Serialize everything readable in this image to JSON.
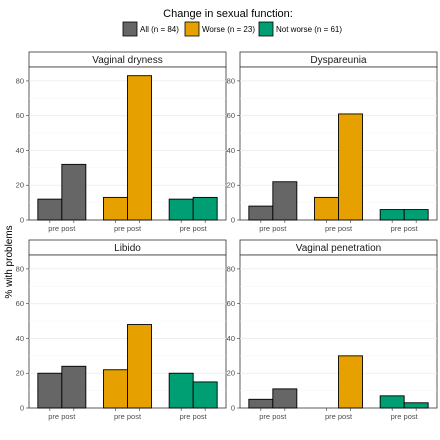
{
  "chart_data": {
    "type": "bar",
    "title": "",
    "ylabel": "% with problems",
    "xlabel": "",
    "ylim": [
      0,
      88
    ],
    "y_ticks": [
      0,
      20,
      40,
      60,
      80
    ],
    "legend": {
      "title": "Change in sexual function:",
      "position": "top",
      "items": [
        {
          "label": "All (n = 84)",
          "color": "#666666"
        },
        {
          "label": "Worse (n = 23)",
          "color": "#E6A000"
        },
        {
          "label": "Not worse (n = 61)",
          "color": "#009E73"
        }
      ]
    },
    "groups": [
      "All (n = 84)",
      "Worse (n = 23)",
      "Not worse (n = 61)"
    ],
    "group_colors": [
      "#666666",
      "#E6A000",
      "#009E73"
    ],
    "x_tick_label": "pre post",
    "grid": true,
    "panels": [
      {
        "title": "Vaginal dryness",
        "values": [
          [
            12,
            32
          ],
          [
            13,
            83
          ],
          [
            12,
            13
          ]
        ]
      },
      {
        "title": "Dyspareunia",
        "values": [
          [
            8,
            22
          ],
          [
            13,
            61
          ],
          [
            6,
            6
          ]
        ]
      },
      {
        "title": "Libido",
        "values": [
          [
            20,
            24
          ],
          [
            22,
            48
          ],
          [
            20,
            15
          ]
        ]
      },
      {
        "title": "Vaginal penetration",
        "values": [
          [
            5,
            11
          ],
          [
            0,
            30
          ],
          [
            7,
            3
          ]
        ]
      }
    ]
  }
}
